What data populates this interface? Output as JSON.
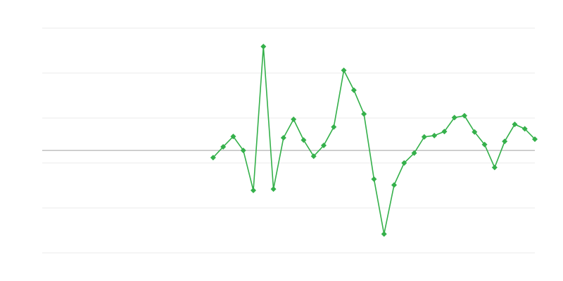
{
  "chart_data": {
    "type": "line",
    "title": "",
    "xlabel": "",
    "ylabel": "",
    "x": [
      17,
      18,
      19,
      20,
      21,
      22,
      23,
      24,
      25,
      26,
      27,
      28,
      29,
      30,
      31,
      32,
      33,
      34,
      35,
      36,
      37,
      38,
      39,
      40,
      41,
      42,
      43,
      44,
      45,
      46,
      47,
      48,
      49
    ],
    "xlim": [
      0,
      49
    ],
    "series": [
      {
        "values": [
          -0.16,
          0.08,
          0.31,
          0,
          -0.89,
          2.31,
          -0.86,
          0.28,
          0.69,
          0.23,
          -0.13,
          0.11,
          0.52,
          1.78,
          1.34,
          0.81,
          -0.64,
          -1.86,
          -0.77,
          -0.28,
          -0.06,
          0.3,
          0.33,
          0.42,
          0.73,
          0.77,
          0.41,
          0.13,
          -0.38,
          0.2,
          0.58,
          0.48,
          0.25
        ],
        "color": "#34b04a",
        "marker": "diamond"
      }
    ],
    "ylim": [
      -2.28,
      2.72
    ],
    "gridlines": [
      -2.28,
      -1.28,
      -0.28,
      0.72,
      1.72,
      2.72
    ],
    "baseline": 0,
    "grid": true,
    "legend": "none",
    "colors": {
      "grid": "#ebebeb",
      "baseline": "#a0a0a0",
      "line": "#34b04a"
    }
  }
}
